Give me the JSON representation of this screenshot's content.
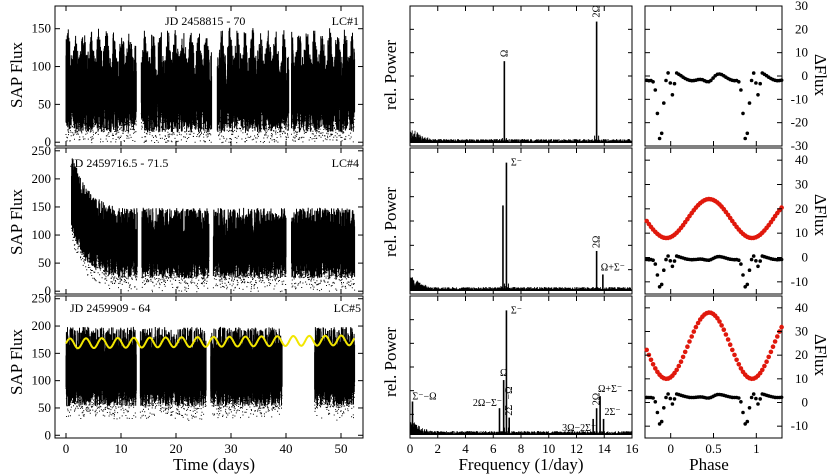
{
  "figure": {
    "time_xlabel": "Time (days)",
    "freq_xlabel": "Frequency (1/day)",
    "phase_xlabel": "Phase",
    "flux_ylabel": "SAP Flux",
    "power_ylabel": "rel. Power",
    "dflux_ylabel": "ΔFlux"
  },
  "chart_data": [
    {
      "id": "lc1",
      "type": "scatter",
      "panel": "light-curve",
      "tag": "LC#1",
      "label": "JD 2458815 - 70",
      "xlim": [
        -2,
        54
      ],
      "ylim": [
        -5,
        180
      ],
      "yticks": [
        0,
        50,
        100,
        150
      ],
      "xticks": [
        0,
        10,
        20,
        30,
        40,
        50
      ],
      "ylabel": "SAP Flux",
      "segments": [
        [
          0,
          12.8
        ],
        [
          13.7,
          26.5
        ],
        [
          27.5,
          40.5
        ],
        [
          41.0,
          52.5
        ]
      ],
      "upper_level": 95,
      "lower_level": 40,
      "oscillation_period_days": 1.4
    },
    {
      "id": "lc4",
      "type": "scatter",
      "panel": "light-curve",
      "tag": "LC#4",
      "label": "JD 2459716.5 - 71.5",
      "xlim": [
        -2,
        54
      ],
      "ylim": [
        -5,
        255
      ],
      "yticks": [
        0,
        50,
        100,
        150,
        200,
        250
      ],
      "xticks": [
        0,
        10,
        20,
        30,
        40,
        50
      ],
      "ylabel": "SAP Flux",
      "segments": [
        [
          1.0,
          13.0
        ],
        [
          13.8,
          26.0
        ],
        [
          26.8,
          40.0
        ],
        [
          41.0,
          52.5
        ]
      ],
      "upper_level": 110,
      "lower_level": 50,
      "initial_peak": 215
    },
    {
      "id": "lc5",
      "type": "scatter",
      "panel": "light-curve",
      "tag": "LC#5",
      "label": "JD 2459909 - 64",
      "xlim": [
        -2,
        54
      ],
      "ylim": [
        -5,
        255
      ],
      "yticks": [
        0,
        50,
        100,
        150,
        200,
        250
      ],
      "xticks": [
        0,
        10,
        20,
        30,
        40,
        50
      ],
      "xlabel": "Time (days)",
      "ylabel": "SAP Flux",
      "segments": [
        [
          0,
          12.8
        ],
        [
          13.5,
          25.5
        ],
        [
          26.3,
          39.3
        ],
        [
          45.2,
          52.5
        ]
      ],
      "upper_level": 160,
      "lower_level": 80,
      "fit": {
        "color": "#f2e600",
        "mean": 171,
        "amplitude": 9,
        "period_days": 2.9,
        "trend_per_day": 0.11,
        "x_range": [
          0,
          52.5
        ]
      }
    },
    {
      "id": "ps1",
      "type": "line",
      "panel": "power-spectrum",
      "xlim": [
        0,
        16
      ],
      "xticks": [
        0,
        2,
        4,
        6,
        8,
        10,
        12,
        14,
        16
      ],
      "ylabel": "rel. Power",
      "peaks": [
        {
          "x": 6.8,
          "y": 0.62,
          "label": "Ω"
        },
        {
          "x": 13.45,
          "y": 0.92,
          "label": "2Ω"
        }
      ]
    },
    {
      "id": "ps4",
      "type": "line",
      "panel": "power-spectrum",
      "xlim": [
        0,
        16
      ],
      "xticks": [
        0,
        2,
        4,
        6,
        8,
        10,
        12,
        14,
        16
      ],
      "ylabel": "rel. Power",
      "peaks": [
        {
          "x": 6.7,
          "y": 0.62,
          "label": ""
        },
        {
          "x": 6.95,
          "y": 0.93,
          "label": "Σ⁻"
        },
        {
          "x": 13.45,
          "y": 0.29,
          "label": "2Ω"
        },
        {
          "x": 13.9,
          "y": 0.12,
          "label": "Ω+Σ⁻"
        }
      ]
    },
    {
      "id": "ps5",
      "type": "line",
      "panel": "power-spectrum",
      "xlim": [
        0,
        16
      ],
      "xticks": [
        0,
        2,
        4,
        6,
        8,
        10,
        12,
        14,
        16
      ],
      "xlabel": "Frequency (1/day)",
      "ylabel": "rel. Power",
      "peaks": [
        {
          "x": 0.18,
          "y": 0.25,
          "label": "Σ⁻−Ω"
        },
        {
          "x": 6.45,
          "y": 0.2,
          "label": "2Ω−Σ⁻"
        },
        {
          "x": 6.75,
          "y": 0.41,
          "label": "Ω"
        },
        {
          "x": 6.95,
          "y": 0.93,
          "label": "Σ⁻"
        },
        {
          "x": 7.15,
          "y": 0.13,
          "label": "2Σ⁻−Ω"
        },
        {
          "x": 13.2,
          "y": 0.12,
          "label": "3Ω−2Σ⁻"
        },
        {
          "x": 13.45,
          "y": 0.2,
          "label": "2Ω"
        },
        {
          "x": 13.7,
          "y": 0.29,
          "label": "Ω+Σ⁻"
        },
        {
          "x": 13.95,
          "y": 0.12,
          "label": "2Σ⁻"
        }
      ]
    },
    {
      "id": "ph1",
      "type": "scatter",
      "panel": "phase-fold",
      "xlim": [
        -0.3,
        1.3
      ],
      "xticks": [
        0,
        0.5,
        1
      ],
      "ylim": [
        -30,
        30
      ],
      "yticks": [
        -30,
        -20,
        -10,
        0,
        10,
        20,
        30
      ],
      "ylabel": "ΔFlux",
      "series": [
        {
          "name": "black",
          "color": "#000000",
          "offset": 0,
          "shape": "dips"
        }
      ]
    },
    {
      "id": "ph4",
      "type": "scatter",
      "panel": "phase-fold",
      "xlim": [
        -0.3,
        1.3
      ],
      "xticks": [
        0,
        0.5,
        1
      ],
      "ylim": [
        -15,
        45
      ],
      "yticks": [
        -10,
        0,
        10,
        20,
        30,
        40
      ],
      "ylabel": "ΔFlux",
      "series": [
        {
          "name": "red",
          "color": "#e0180c",
          "offset": 16,
          "amplitude": 8,
          "shape": "sine"
        },
        {
          "name": "black",
          "color": "#000000",
          "offset": 0,
          "shape": "dips"
        }
      ]
    },
    {
      "id": "ph5",
      "type": "scatter",
      "panel": "phase-fold",
      "xlim": [
        -0.3,
        1.3
      ],
      "xticks": [
        0,
        0.5,
        1
      ],
      "ylim": [
        -15,
        45
      ],
      "yticks": [
        -10,
        0,
        10,
        20,
        30,
        40
      ],
      "xlabel": "Phase",
      "ylabel": "ΔFlux",
      "series": [
        {
          "name": "red",
          "color": "#e0180c",
          "offset": 24,
          "amplitude": 14,
          "shape": "sine"
        },
        {
          "name": "black",
          "color": "#000000",
          "offset": 0,
          "shape": "dips"
        }
      ]
    }
  ]
}
